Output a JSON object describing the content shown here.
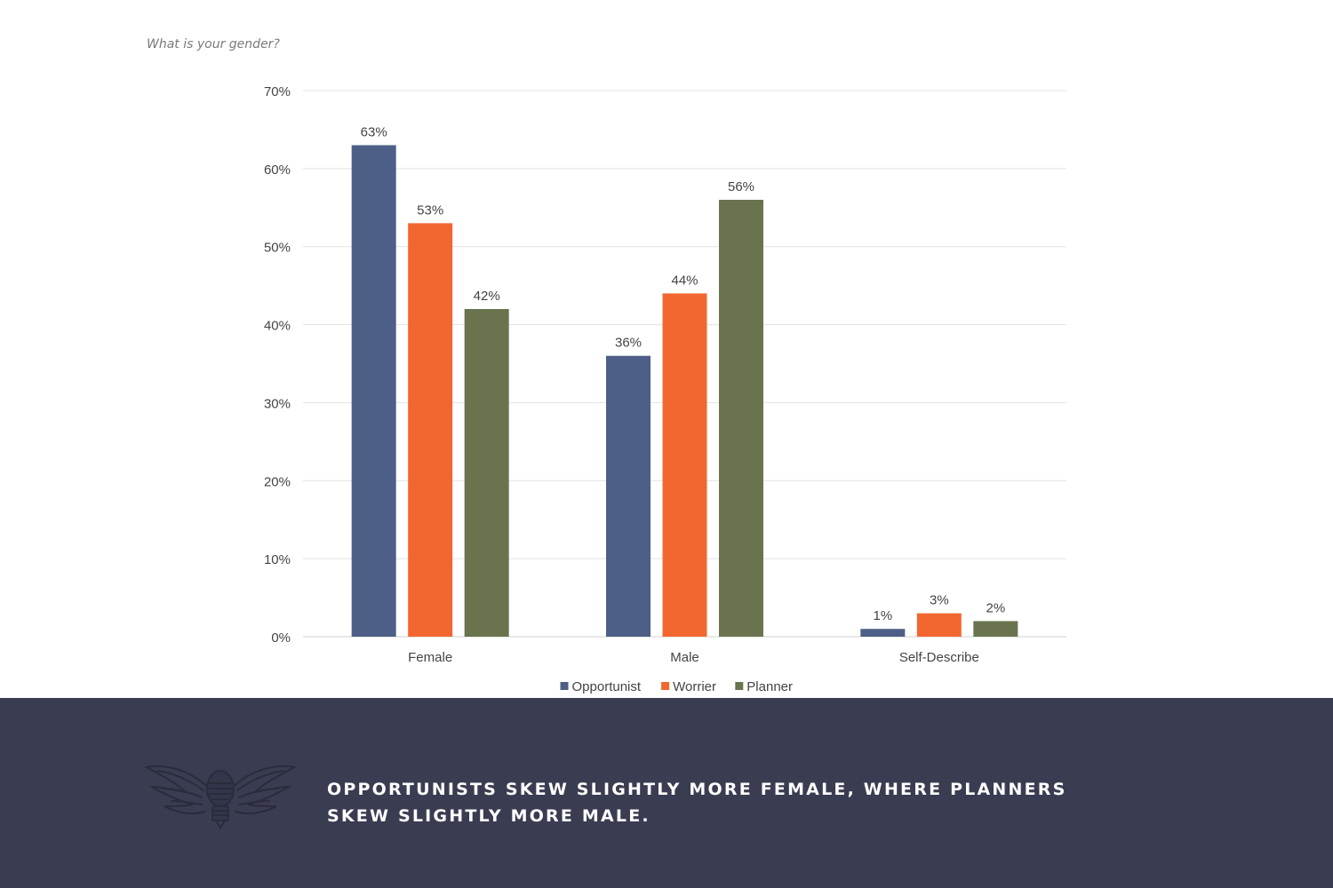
{
  "question": "What is your gender?",
  "chart_data": {
    "type": "bar",
    "categories": [
      "Female",
      "Male",
      "Self-Describe"
    ],
    "series": [
      {
        "name": "Opportunist",
        "values": [
          63,
          36,
          1
        ],
        "color": "#4d5f86"
      },
      {
        "name": "Worrier",
        "values": [
          53,
          44,
          3
        ],
        "color": "#f26730"
      },
      {
        "name": "Planner",
        "values": [
          42,
          56,
          2
        ],
        "color": "#69744f"
      }
    ],
    "ylim": [
      0,
      70
    ],
    "yticks": [
      0,
      10,
      20,
      30,
      40,
      50,
      60,
      70
    ],
    "ytick_labels": [
      "0%",
      "10%",
      "20%",
      "30%",
      "40%",
      "50%",
      "60%",
      "70%"
    ],
    "value_suffix": "%",
    "grid": true,
    "legend_position": "bottom"
  },
  "footer": {
    "caption": "OPPORTUNISTS SKEW SLIGHTLY MORE FEMALE, WHERE PLANNERS SKEW SLIGHTLY MORE MALE.",
    "emblem_icon": "winged-lightbulb-icon"
  }
}
